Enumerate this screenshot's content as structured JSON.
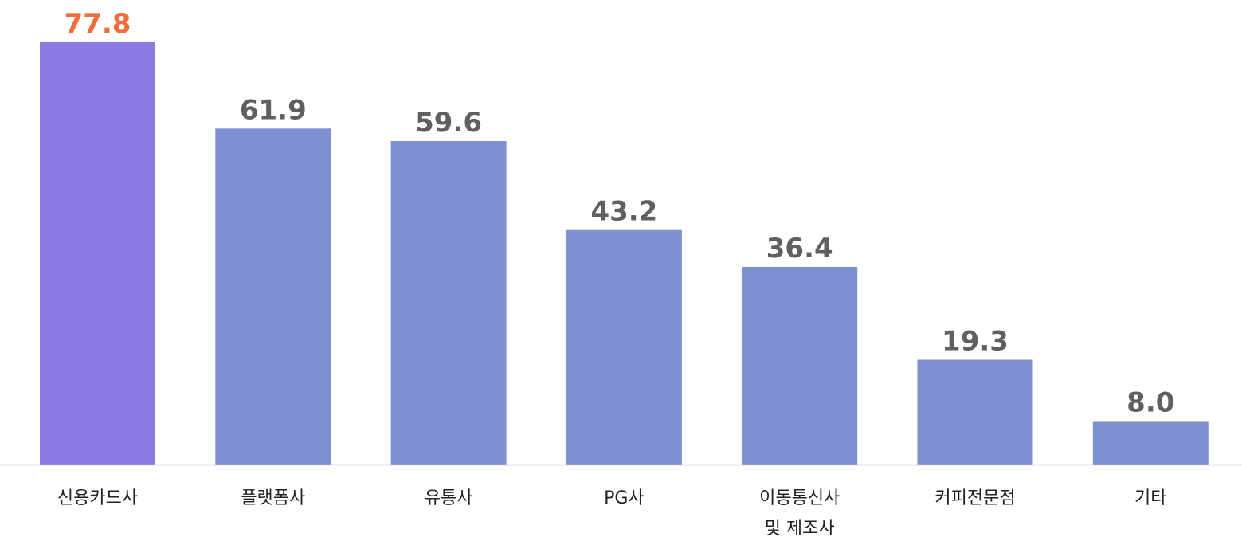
{
  "chart_data": {
    "type": "bar",
    "title": "",
    "xlabel": "",
    "ylabel": "",
    "ylim": [
      0,
      77.8
    ],
    "grid": false,
    "legend": "none",
    "categories": [
      [
        "신용카드사"
      ],
      [
        "플랫폼사"
      ],
      [
        "유통사"
      ],
      [
        "PG사"
      ],
      [
        "이동통신사",
        "및 제조사"
      ],
      [
        "커피전문점"
      ],
      [
        "기타"
      ]
    ],
    "values": [
      77.8,
      61.9,
      59.6,
      43.2,
      36.4,
      19.3,
      8.0
    ],
    "value_labels": [
      "77.8",
      "61.9",
      "59.6",
      "43.2",
      "36.4",
      "19.3",
      "8.0"
    ],
    "highlight_index": 0
  },
  "colors": {
    "highlight_bar": "#8b7ce4",
    "bar": "#7d91d2",
    "highlight_label": "#f26c3c",
    "label": "#5f5f5f",
    "axis": "#c8c8c8"
  }
}
